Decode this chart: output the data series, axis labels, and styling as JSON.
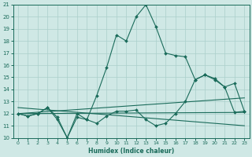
{
  "xlabel": "Humidex (Indice chaleur)",
  "xlim": [
    -0.5,
    23.5
  ],
  "ylim": [
    10,
    21
  ],
  "yticks": [
    10,
    11,
    12,
    13,
    14,
    15,
    16,
    17,
    18,
    19,
    20,
    21
  ],
  "xticks": [
    0,
    1,
    2,
    3,
    4,
    5,
    6,
    7,
    8,
    9,
    10,
    11,
    12,
    13,
    14,
    15,
    16,
    17,
    18,
    19,
    20,
    21,
    22,
    23
  ],
  "bg_color": "#cfe8e5",
  "line_color": "#1a6b5a",
  "grid_color": "#aacfcb",
  "main_line": {
    "x": [
      0,
      1,
      2,
      3,
      4,
      5,
      6,
      7,
      8,
      9,
      10,
      11,
      12,
      13,
      14,
      15,
      16,
      17,
      18,
      19,
      20,
      21,
      22,
      23
    ],
    "y": [
      12.0,
      11.8,
      12.0,
      12.5,
      11.7,
      10.0,
      12.0,
      11.5,
      11.2,
      11.8,
      12.2,
      12.2,
      12.3,
      11.5,
      11.0,
      11.2,
      12.0,
      13.0,
      14.8,
      15.2,
      14.8,
      14.2,
      14.5,
      12.2
    ]
  },
  "trend_lines": [
    {
      "x": [
        0,
        23
      ],
      "y": [
        12.0,
        13.3
      ]
    },
    {
      "x": [
        0,
        23
      ],
      "y": [
        12.0,
        12.1
      ]
    },
    {
      "x": [
        0,
        23
      ],
      "y": [
        12.5,
        11.0
      ]
    }
  ],
  "humidex_line": {
    "x": [
      0,
      1,
      2,
      3,
      4,
      5,
      6,
      7,
      8,
      9,
      10,
      11,
      12,
      13,
      14,
      15,
      16,
      17,
      18,
      19,
      20,
      21,
      22,
      23
    ],
    "y": [
      12.0,
      11.8,
      12.0,
      12.5,
      11.5,
      10.0,
      11.7,
      11.5,
      13.5,
      15.8,
      18.5,
      18.0,
      20.0,
      21.0,
      19.2,
      17.0,
      16.8,
      16.7,
      14.8,
      15.2,
      14.9,
      14.2,
      12.1,
      12.2
    ]
  }
}
